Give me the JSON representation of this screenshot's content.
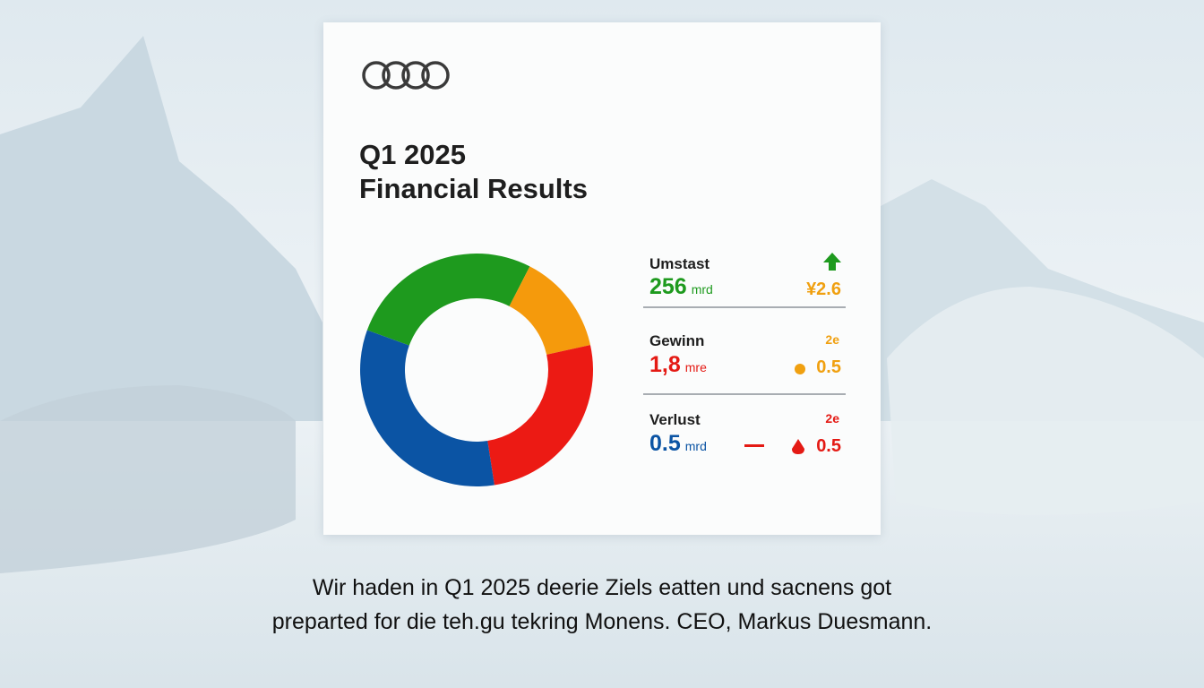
{
  "header": {
    "title_line1": "Q1 2025",
    "title_line2": "Financial Results"
  },
  "chart_data": {
    "type": "donut",
    "values": [
      27,
      14,
      26,
      33
    ],
    "colors": [
      "#1e9a1e",
      "#f59a0c",
      "#ec1a14",
      "#0b54a4"
    ]
  },
  "metrics": [
    {
      "label": "Umstast",
      "value": "256",
      "unit": "mrd",
      "change": "¥2.6"
    },
    {
      "label": "Gewinn",
      "value": "1,8",
      "unit": "mre",
      "note": "2e",
      "change": "0.5"
    },
    {
      "label": "Verlust",
      "value": "0.5",
      "unit": "mrd",
      "note": "2e",
      "change": "0.5"
    }
  ],
  "quote": {
    "line1": "Wir haden in Q1 2025 deerie Ziels eatten und sacnens got",
    "line2": "preparted for die teh.gu tekring Monens. CEO, Markus Duesmann."
  }
}
